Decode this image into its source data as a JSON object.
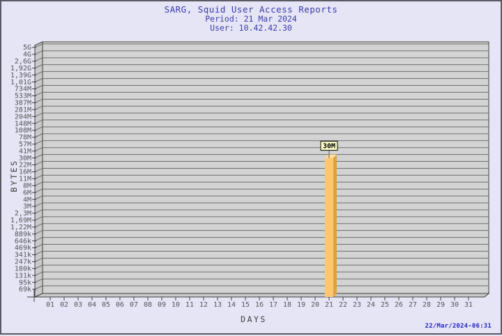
{
  "header": {
    "title": "SARG, Squid User Access Reports",
    "period": "Period: 21 Mar 2024",
    "user": "User: 10.42.42.30"
  },
  "chart_data": {
    "type": "bar",
    "title": "SARG, Squid User Access Reports",
    "period": "21 Mar 2024",
    "user": "10.42.42.30",
    "xlabel": "DAYS",
    "ylabel": "BYTES",
    "grid": true,
    "y_axis_note": "non-linear byte scale, labels listed top to bottom",
    "y_tick_labels": [
      "5G",
      "4G",
      "2,6G",
      "1,92G",
      "1,39G",
      "1,01G",
      "734M",
      "533M",
      "387M",
      "281M",
      "204M",
      "148M",
      "108M",
      "78M",
      "57M",
      "41M",
      "30M",
      "22M",
      "16M",
      "11M",
      "8M",
      "6M",
      "4M",
      "3M",
      "2,3M",
      "1,69M",
      "1,22M",
      "889k",
      "646k",
      "469k",
      "341k",
      "247k",
      "180k",
      "131k",
      "95k",
      "69k"
    ],
    "x_tick_labels": [
      "01",
      "02",
      "03",
      "04",
      "05",
      "06",
      "07",
      "08",
      "09",
      "10",
      "11",
      "12",
      "13",
      "14",
      "15",
      "16",
      "17",
      "18",
      "19",
      "20",
      "21",
      "22",
      "23",
      "24",
      "25",
      "26",
      "27",
      "28",
      "29",
      "30",
      "31"
    ],
    "bars": [
      {
        "x": "21",
        "label": "30M",
        "bytes": 30000000
      }
    ],
    "values": [
      0,
      0,
      0,
      0,
      0,
      0,
      0,
      0,
      0,
      0,
      0,
      0,
      0,
      0,
      0,
      0,
      0,
      0,
      0,
      0,
      30000000,
      0,
      0,
      0,
      0,
      0,
      0,
      0,
      0,
      0,
      0
    ],
    "timestamp": "22/Mar/2024-06:31"
  },
  "colors": {
    "background": "#e5e5f5",
    "border": "#5a5a64",
    "title_text": "#3a3aac",
    "timestamp_text": "#2626c8",
    "tick_text": "#55555a",
    "axis_title_text": "#3c3c3c",
    "plot_fill": "#d3d3d3",
    "wall_fill": "#c9c9c9",
    "grid_line": "#6e6e6e",
    "frame_line": "#3e3e3e",
    "bar_front": "#fdc771",
    "bar_side": "#e0a13f",
    "bar_top": "#fedf9e",
    "value_box_fill": "#ffffc8",
    "value_box_border": "#000000"
  }
}
